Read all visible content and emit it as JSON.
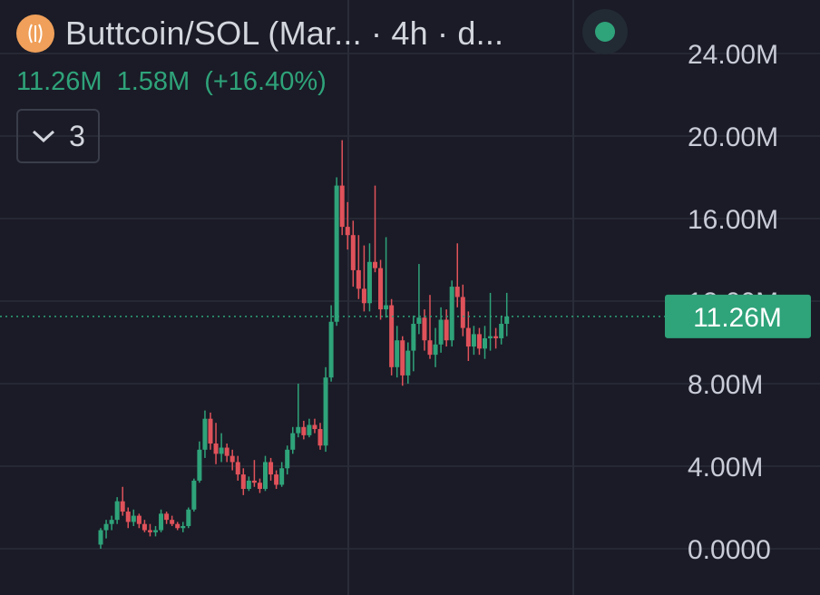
{
  "header": {
    "title": "Buttcoin/SOL (Mar... · 4h · d...",
    "logo_icon": "buttcoin-logo-icon",
    "live_icon": "live-status-dot-icon"
  },
  "stats": {
    "price": "11.26M",
    "change": "1.58M",
    "change_pct": "(+16.40%)"
  },
  "indicators": {
    "count": "3",
    "icon": "chevron-down-icon"
  },
  "colors": {
    "background": "#1a1b26",
    "grid": "#2a2d39",
    "up": "#2fa37a",
    "down": "#e0525a",
    "axis_text": "#c9ccd6",
    "price_line": "#2fa37a"
  },
  "chart_data": {
    "type": "candlestick",
    "y_ticks": [
      "24.00M",
      "20.00M",
      "16.00M",
      "12.00M",
      "8.00M",
      "4.00M",
      "0.0000"
    ],
    "y_tick_values": [
      24,
      20,
      16,
      12,
      8,
      4,
      0
    ],
    "ylim": [
      0,
      24
    ],
    "y_unit": "M",
    "current_price": 11.26,
    "current_price_label": "11.26M",
    "grid": true,
    "candles": [
      {
        "o": 0.2,
        "h": 1.0,
        "l": 0.0,
        "c": 0.9
      },
      {
        "o": 0.9,
        "h": 1.4,
        "l": 0.5,
        "c": 1.2
      },
      {
        "o": 1.2,
        "h": 1.6,
        "l": 0.9,
        "c": 1.4
      },
      {
        "o": 1.4,
        "h": 2.5,
        "l": 1.2,
        "c": 2.3
      },
      {
        "o": 2.3,
        "h": 3.0,
        "l": 1.6,
        "c": 1.8
      },
      {
        "o": 1.8,
        "h": 2.0,
        "l": 1.0,
        "c": 1.3
      },
      {
        "o": 1.3,
        "h": 1.9,
        "l": 1.1,
        "c": 1.6
      },
      {
        "o": 1.6,
        "h": 1.7,
        "l": 1.0,
        "c": 1.2
      },
      {
        "o": 1.2,
        "h": 1.4,
        "l": 0.8,
        "c": 0.9
      },
      {
        "o": 0.9,
        "h": 1.2,
        "l": 0.6,
        "c": 0.8
      },
      {
        "o": 0.8,
        "h": 1.1,
        "l": 0.6,
        "c": 0.9
      },
      {
        "o": 0.9,
        "h": 1.9,
        "l": 0.8,
        "c": 1.7
      },
      {
        "o": 1.7,
        "h": 1.8,
        "l": 1.2,
        "c": 1.4
      },
      {
        "o": 1.4,
        "h": 1.6,
        "l": 1.1,
        "c": 1.2
      },
      {
        "o": 1.2,
        "h": 1.3,
        "l": 0.9,
        "c": 1.0
      },
      {
        "o": 1.0,
        "h": 1.3,
        "l": 0.8,
        "c": 1.1
      },
      {
        "o": 1.1,
        "h": 2.0,
        "l": 1.0,
        "c": 1.9
      },
      {
        "o": 1.9,
        "h": 3.4,
        "l": 1.8,
        "c": 3.3
      },
      {
        "o": 3.3,
        "h": 5.2,
        "l": 3.2,
        "c": 4.8
      },
      {
        "o": 4.8,
        "h": 6.7,
        "l": 4.4,
        "c": 6.3
      },
      {
        "o": 6.3,
        "h": 6.6,
        "l": 4.8,
        "c": 5.1
      },
      {
        "o": 5.1,
        "h": 6.1,
        "l": 4.1,
        "c": 4.6
      },
      {
        "o": 4.6,
        "h": 5.6,
        "l": 4.2,
        "c": 4.9
      },
      {
        "o": 4.9,
        "h": 5.1,
        "l": 4.2,
        "c": 4.5
      },
      {
        "o": 4.5,
        "h": 4.8,
        "l": 3.8,
        "c": 4.2
      },
      {
        "o": 4.2,
        "h": 4.5,
        "l": 3.3,
        "c": 3.6
      },
      {
        "o": 3.6,
        "h": 3.9,
        "l": 2.6,
        "c": 2.9
      },
      {
        "o": 2.9,
        "h": 3.5,
        "l": 2.8,
        "c": 3.3
      },
      {
        "o": 3.3,
        "h": 4.3,
        "l": 3.0,
        "c": 3.2
      },
      {
        "o": 3.2,
        "h": 3.4,
        "l": 2.7,
        "c": 2.9
      },
      {
        "o": 2.9,
        "h": 4.5,
        "l": 2.8,
        "c": 4.2
      },
      {
        "o": 4.2,
        "h": 4.4,
        "l": 3.3,
        "c": 3.6
      },
      {
        "o": 3.6,
        "h": 3.8,
        "l": 2.9,
        "c": 3.1
      },
      {
        "o": 3.1,
        "h": 4.2,
        "l": 3.0,
        "c": 3.9
      },
      {
        "o": 3.9,
        "h": 5.0,
        "l": 3.6,
        "c": 4.8
      },
      {
        "o": 4.8,
        "h": 5.9,
        "l": 4.6,
        "c": 5.6
      },
      {
        "o": 5.6,
        "h": 8.0,
        "l": 5.4,
        "c": 5.9
      },
      {
        "o": 5.9,
        "h": 6.2,
        "l": 5.3,
        "c": 5.5
      },
      {
        "o": 5.5,
        "h": 6.3,
        "l": 5.4,
        "c": 6.0
      },
      {
        "o": 6.0,
        "h": 6.3,
        "l": 5.6,
        "c": 5.8
      },
      {
        "o": 5.8,
        "h": 6.1,
        "l": 4.8,
        "c": 5.0
      },
      {
        "o": 5.0,
        "h": 8.8,
        "l": 4.7,
        "c": 8.3
      },
      {
        "o": 8.3,
        "h": 11.8,
        "l": 8.1,
        "c": 11.0
      },
      {
        "o": 11.0,
        "h": 18.0,
        "l": 10.8,
        "c": 17.6
      },
      {
        "o": 17.6,
        "h": 19.8,
        "l": 15.2,
        "c": 15.6
      },
      {
        "o": 15.6,
        "h": 16.8,
        "l": 14.5,
        "c": 15.2
      },
      {
        "o": 15.2,
        "h": 15.9,
        "l": 12.7,
        "c": 13.5
      },
      {
        "o": 13.5,
        "h": 15.2,
        "l": 12.1,
        "c": 12.6
      },
      {
        "o": 12.6,
        "h": 14.7,
        "l": 11.5,
        "c": 11.9
      },
      {
        "o": 11.9,
        "h": 14.8,
        "l": 11.5,
        "c": 13.9
      },
      {
        "o": 13.9,
        "h": 17.6,
        "l": 13.4,
        "c": 13.6
      },
      {
        "o": 13.6,
        "h": 14.0,
        "l": 11.1,
        "c": 11.6
      },
      {
        "o": 11.6,
        "h": 15.1,
        "l": 11.2,
        "c": 11.8
      },
      {
        "o": 11.8,
        "h": 12.1,
        "l": 8.4,
        "c": 8.8
      },
      {
        "o": 8.8,
        "h": 10.8,
        "l": 8.3,
        "c": 10.1
      },
      {
        "o": 10.1,
        "h": 10.3,
        "l": 7.9,
        "c": 8.4
      },
      {
        "o": 8.4,
        "h": 10.0,
        "l": 8.0,
        "c": 9.6
      },
      {
        "o": 9.6,
        "h": 11.3,
        "l": 8.6,
        "c": 10.9
      },
      {
        "o": 10.9,
        "h": 13.8,
        "l": 10.4,
        "c": 11.2
      },
      {
        "o": 11.2,
        "h": 11.6,
        "l": 9.6,
        "c": 10.1
      },
      {
        "o": 10.1,
        "h": 12.3,
        "l": 9.2,
        "c": 9.4
      },
      {
        "o": 9.4,
        "h": 10.7,
        "l": 8.8,
        "c": 9.9
      },
      {
        "o": 9.9,
        "h": 11.7,
        "l": 9.5,
        "c": 11.1
      },
      {
        "o": 11.1,
        "h": 11.6,
        "l": 9.8,
        "c": 10.1
      },
      {
        "o": 10.1,
        "h": 13.0,
        "l": 9.8,
        "c": 12.7
      },
      {
        "o": 12.7,
        "h": 14.8,
        "l": 11.7,
        "c": 12.2
      },
      {
        "o": 12.2,
        "h": 12.8,
        "l": 10.3,
        "c": 10.7
      },
      {
        "o": 10.7,
        "h": 11.5,
        "l": 9.1,
        "c": 9.8
      },
      {
        "o": 9.8,
        "h": 10.8,
        "l": 9.4,
        "c": 10.4
      },
      {
        "o": 10.4,
        "h": 10.7,
        "l": 9.4,
        "c": 9.7
      },
      {
        "o": 9.7,
        "h": 10.8,
        "l": 9.2,
        "c": 10.2
      },
      {
        "o": 10.2,
        "h": 12.4,
        "l": 9.6,
        "c": 10.3
      },
      {
        "o": 10.3,
        "h": 10.7,
        "l": 9.7,
        "c": 10.2
      },
      {
        "o": 10.2,
        "h": 11.3,
        "l": 9.9,
        "c": 10.9
      },
      {
        "o": 10.9,
        "h": 12.4,
        "l": 10.3,
        "c": 11.26
      }
    ]
  }
}
